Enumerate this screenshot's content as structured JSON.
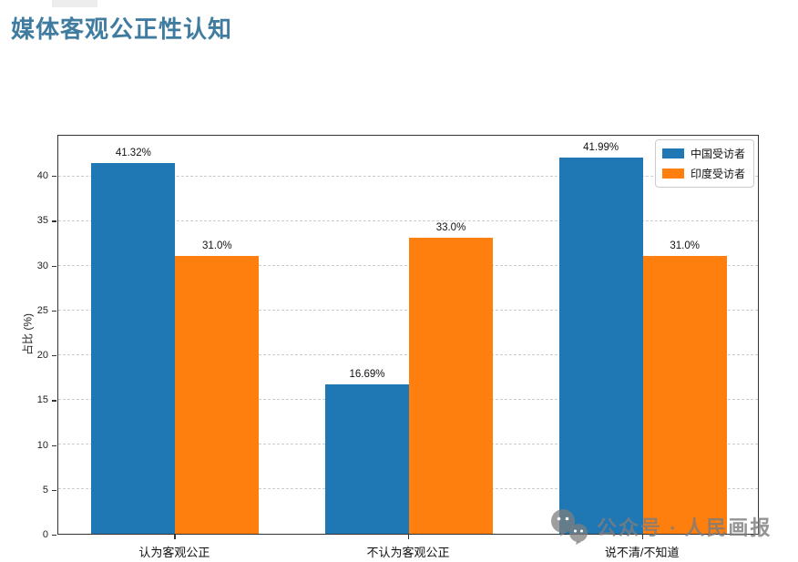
{
  "header": {
    "title_color": "#3f7ca0"
  },
  "watermark": {
    "icon": "wechat-logo-icon",
    "text": "公众号 · 人民画报"
  },
  "chart_data": {
    "type": "bar",
    "title": "媒体客观公正性认知",
    "categories": [
      "认为客观公正",
      "不认为客观公正",
      "说不清/不知道"
    ],
    "series": [
      {
        "name": "中国受访者",
        "color": "#1f77b4",
        "values": [
          41.32,
          16.69,
          41.99
        ],
        "value_labels": [
          "41.32%",
          "16.69%",
          "41.99%"
        ]
      },
      {
        "name": "印度受访者",
        "color": "#ff7f0e",
        "values": [
          31.0,
          33.0,
          31.0
        ],
        "value_labels": [
          "31.0%",
          "33.0%",
          "31.0%"
        ]
      }
    ],
    "xlabel": "",
    "ylabel": "占比 (%)",
    "ylim": [
      0,
      44.6
    ],
    "yticks": [
      0,
      5,
      10,
      15,
      20,
      25,
      30,
      35,
      40
    ],
    "grid": "horizontal-dashed",
    "grid_color": "#cccccc",
    "axis_color": "#333333",
    "legend_position": "upper-right"
  }
}
